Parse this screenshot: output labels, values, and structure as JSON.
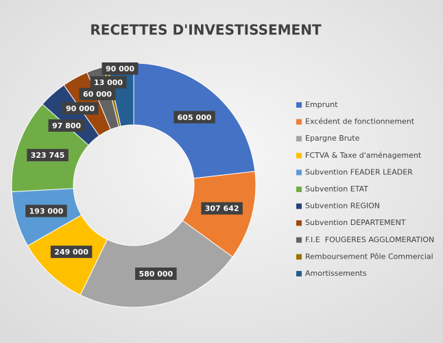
{
  "chart_data": {
    "type": "donut",
    "title": "RECETTES D'INVESTISSEMENT",
    "categories": [
      "Emprunt",
      "Excédent de fonctionnement",
      "Epargne Brute",
      "FCTVA & Taxe d'aménagement",
      "Subvention FEADER LEADER",
      "Subvention ETAT",
      "Subvention REGION",
      "Subvention DEPARTEMENT",
      "F.I.E  FOUGERES AGGLOMERATION",
      "Remboursement Pôle Commercial",
      "Amortissements"
    ],
    "values": [
      605000,
      307642,
      580000,
      249000,
      193000,
      323745,
      97800,
      90000,
      60000,
      13000,
      90000
    ],
    "value_labels": [
      "605 000",
      "307 642",
      "580 000",
      "249 000",
      "193 000",
      "323 745",
      "97 800",
      "90 000",
      "60 000",
      "13 000",
      "90 000"
    ],
    "colors": [
      "#4472c4",
      "#ed7d31",
      "#a5a5a5",
      "#ffc000",
      "#5b9bd5",
      "#70ad47",
      "#264478",
      "#9e480e",
      "#636363",
      "#997300",
      "#255e91"
    ],
    "legend": "right"
  }
}
